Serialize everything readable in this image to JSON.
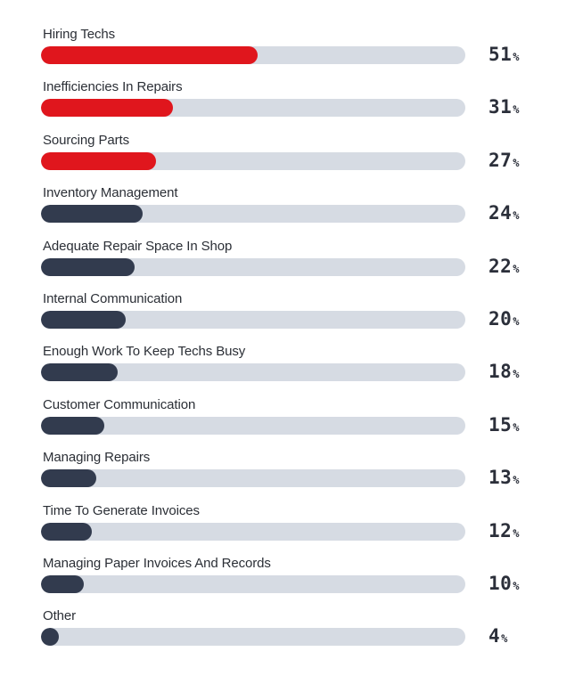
{
  "chart_data": {
    "type": "bar",
    "orientation": "horizontal",
    "xlim": [
      0,
      100
    ],
    "unit_symbol": "%",
    "categories": [
      "Hiring Techs",
      "Inefficiencies In Repairs",
      "Sourcing Parts",
      "Inventory Management",
      "Adequate Repair Space In Shop",
      "Internal Communication",
      "Enough Work To Keep Techs Busy",
      "Customer Communication",
      "Managing Repairs",
      "Time To Generate Invoices",
      "Managing Paper Invoices And Records",
      "Other"
    ],
    "values": [
      51,
      31,
      27,
      24,
      22,
      20,
      18,
      15,
      13,
      12,
      10,
      4
    ],
    "bar_colors": [
      "red",
      "red",
      "red",
      "navy",
      "navy",
      "navy",
      "navy",
      "navy",
      "navy",
      "navy",
      "navy",
      "navy"
    ],
    "colors": {
      "red": "#e0161d",
      "navy": "#323b4e",
      "track": "#d6dbe3",
      "text": "#2b2f36"
    }
  }
}
